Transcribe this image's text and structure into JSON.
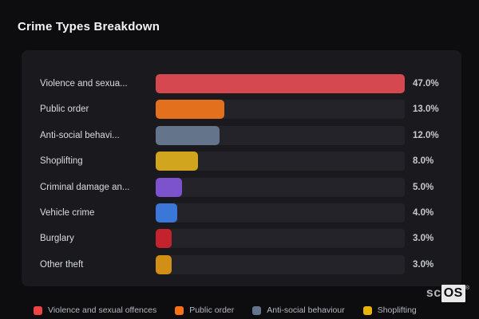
{
  "page": {
    "title": "Crime Types Breakdown",
    "background_color": "#0d0d10",
    "card_background_color": "#1a1a1e"
  },
  "chart_data": {
    "type": "bar",
    "orientation": "horizontal",
    "title": "Crime Types Breakdown",
    "categories": [
      "Violence and sexual offences",
      "Public order",
      "Anti-social behaviour",
      "Shoplifting",
      "Criminal damage an...",
      "Vehicle crime",
      "Burglary",
      "Other theft"
    ],
    "labels_displayed": [
      "Violence and sexua...",
      "Public order",
      "Anti-social behavi...",
      "Shoplifting",
      "Criminal damage an...",
      "Vehicle crime",
      "Burglary",
      "Other theft"
    ],
    "values": [
      47.0,
      13.0,
      12.0,
      8.0,
      5.0,
      4.0,
      3.0,
      3.0
    ],
    "value_labels": [
      "47.0%",
      "13.0%",
      "12.0%",
      "8.0%",
      "5.0%",
      "4.0%",
      "3.0%",
      "3.0%"
    ],
    "bar_colors": [
      "#d5484f",
      "#e2701d",
      "#64748b",
      "#d1a51d",
      "#7d52cd",
      "#3b76d9",
      "#c4232e",
      "#d28f16"
    ],
    "track_color": "#232329",
    "x_scale_max": 47.0,
    "grid": false,
    "legend_position": "bottom",
    "legend": [
      {
        "label": "Violence and sexual offences",
        "color": "#ef4444"
      },
      {
        "label": "Public order",
        "color": "#f97316"
      },
      {
        "label": "Anti-social behaviour",
        "color": "#64748b"
      },
      {
        "label": "Shoplifting",
        "color": "#eab308"
      }
    ]
  },
  "watermark": {
    "prefix": "sc",
    "suffix": "OS",
    "registered": "®"
  }
}
